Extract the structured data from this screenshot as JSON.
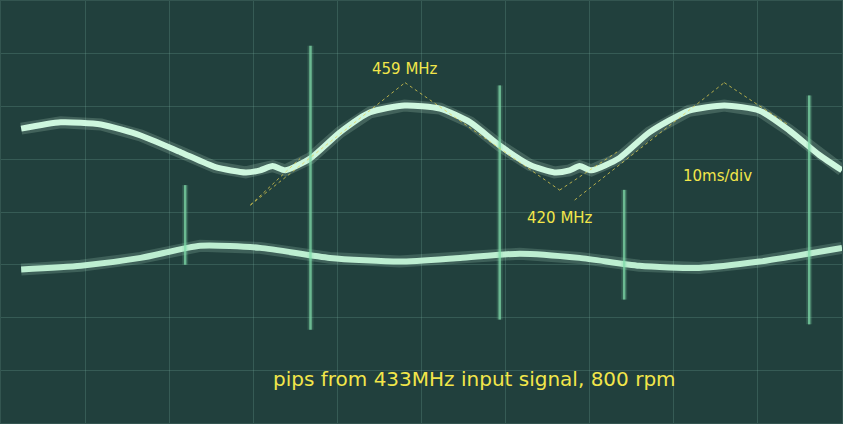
{
  "chart_data": {
    "type": "line",
    "annotations": [
      "459 MHz",
      "420 MHz",
      "10ms/div",
      "pips from 433MHz input signal, 800 rpm"
    ],
    "xlim": [
      0,
      100
    ],
    "ylim": [
      0,
      8
    ],
    "xticks": [
      0,
      10,
      20,
      30,
      40,
      50,
      60,
      70,
      80,
      90,
      100
    ],
    "yticks": [
      0,
      1,
      2,
      3,
      4,
      5,
      6,
      7,
      8
    ],
    "grid": true,
    "tick_labels": false,
    "series": [
      {
        "color": "#d6ffe6",
        "x": [
          2.4,
          7.1,
          11.9,
          16.6,
          21.4,
          25.5,
          29.1,
          30.8,
          32.3,
          33.8,
          36.8,
          40.3,
          43.9,
          48.0,
          52.2,
          55.8,
          59.3,
          62.9,
          65.8,
          67.6,
          68.8,
          70.2,
          73.5,
          77.1,
          81.8,
          86.0,
          90.2,
          93.7,
          97.3,
          100
        ],
        "values": [
          5.58,
          5.7,
          5.66,
          5.45,
          5.13,
          4.85,
          4.75,
          4.79,
          4.87,
          4.79,
          5.02,
          5.51,
          5.89,
          6.02,
          5.96,
          5.7,
          5.26,
          4.89,
          4.75,
          4.79,
          4.87,
          4.79,
          5.02,
          5.51,
          5.92,
          6.02,
          5.92,
          5.55,
          5.08,
          4.79
        ]
      },
      {
        "color": "#c4f5d8",
        "x": [
          2.4,
          9.5,
          16.6,
          23.7,
          30.8,
          39.1,
          47.4,
          54.6,
          61.7,
          68.8,
          75.9,
          83.0,
          90.2,
          100
        ],
        "values": [
          2.91,
          2.98,
          3.13,
          3.36,
          3.32,
          3.13,
          3.06,
          3.13,
          3.21,
          3.13,
          2.98,
          2.94,
          3.06,
          3.32
        ]
      },
      {
        "color": "#7fd9a8",
        "x": [
          21.9,
          21.9,
          null,
          36.8,
          36.8,
          null,
          59.3,
          59.3,
          null,
          74.1,
          74.1,
          null,
          96.1,
          96.1
        ],
        "values": [
          4.51,
          3.0,
          null,
          7.15,
          1.77,
          null,
          6.4,
          1.96,
          null,
          4.42,
          2.34,
          null,
          6.21,
          1.87
        ]
      }
    ]
  }
}
